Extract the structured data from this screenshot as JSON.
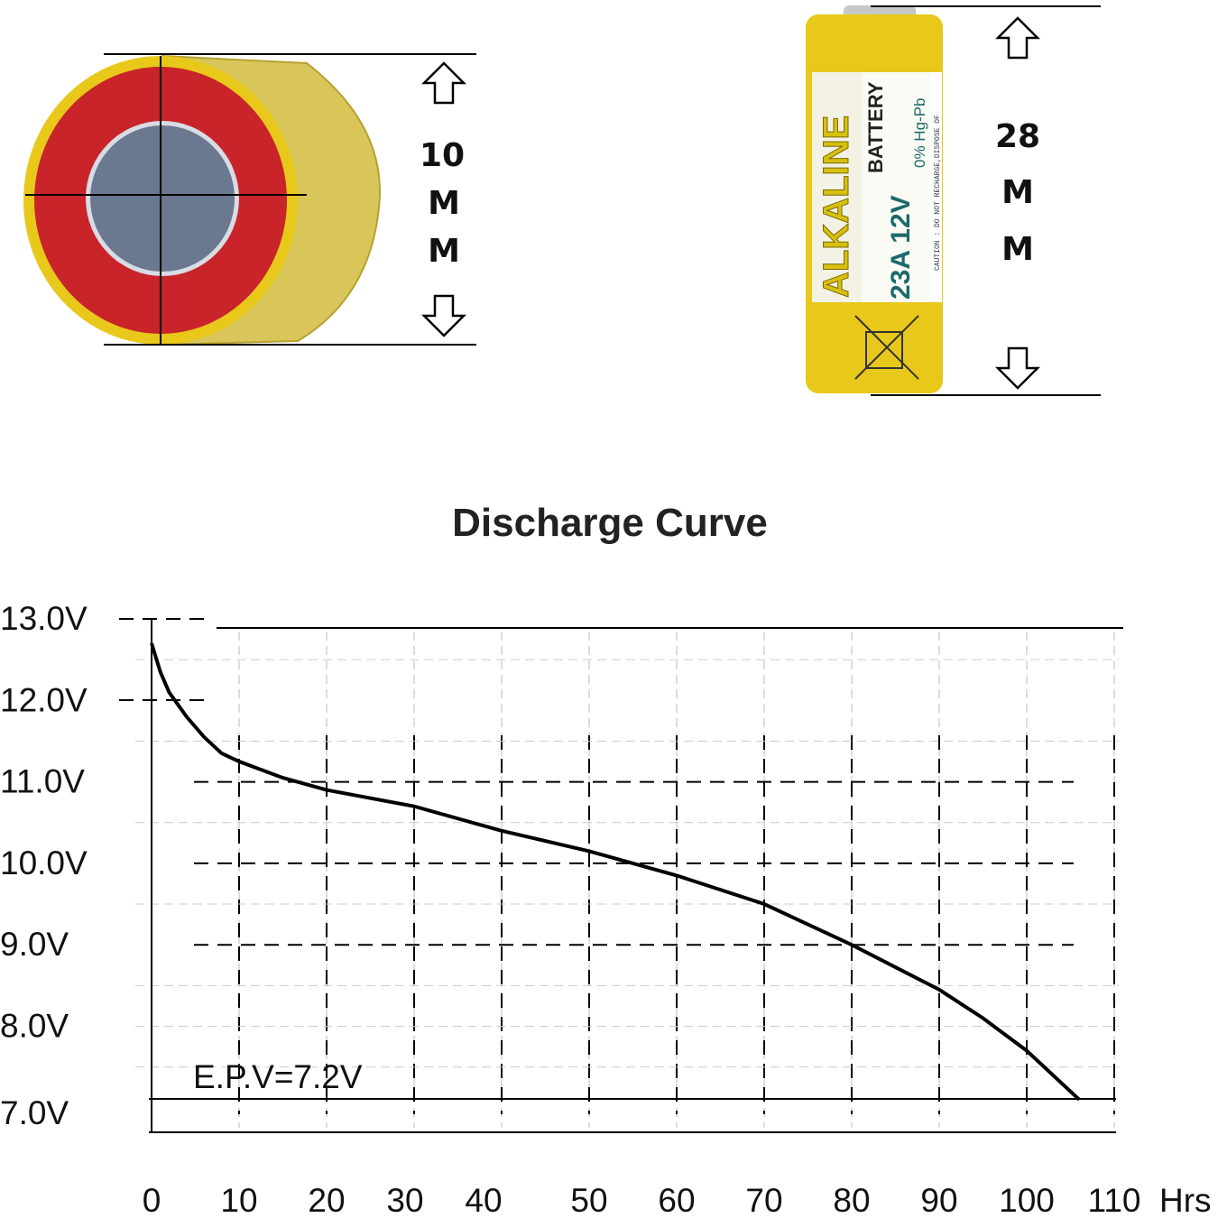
{
  "battery_end": {
    "dimension": [
      "10",
      "M",
      "M"
    ]
  },
  "battery_side": {
    "dimension": [
      "28",
      "M",
      "M"
    ],
    "label_brand": "ALKALINE",
    "label_type": "BATTERY",
    "label_model": "23A 12V",
    "label_mercury": "0% Hg-Pb",
    "label_caution": "CAUTION : DO NOT RECHARGE,DISPOSE OF"
  },
  "colors": {
    "battery_yellow": "#e8c81a",
    "end_red": "#c8242a",
    "terminal": "#6a7890",
    "label_teal": "#1c6a6a"
  },
  "chart_data": {
    "type": "line",
    "title": "Discharge Curve",
    "xlabel": "Hrs",
    "ylabel": "",
    "xlim": [
      0,
      110
    ],
    "ylim": [
      7.0,
      13.0
    ],
    "x_ticks": [
      "0",
      "10",
      "20",
      "30",
      "40",
      "50",
      "60",
      "70",
      "80",
      "90",
      "100",
      "110"
    ],
    "y_ticks": [
      "13.0V",
      "12.0V",
      "11.0V",
      "10.0V",
      "9.0V",
      "8.0V",
      "7.0V"
    ],
    "grid": true,
    "annotation": "E.P.V=7.2V",
    "series": [
      {
        "name": "Discharge",
        "x": [
          0,
          1,
          2,
          4,
          6,
          8,
          10,
          15,
          20,
          30,
          40,
          50,
          60,
          70,
          80,
          90,
          95,
          100,
          103,
          106
        ],
        "y": [
          12.7,
          12.35,
          12.1,
          11.8,
          11.55,
          11.35,
          11.25,
          11.05,
          10.9,
          10.7,
          10.4,
          10.15,
          9.85,
          9.5,
          9.0,
          8.45,
          8.1,
          7.7,
          7.4,
          7.1
        ]
      }
    ]
  }
}
